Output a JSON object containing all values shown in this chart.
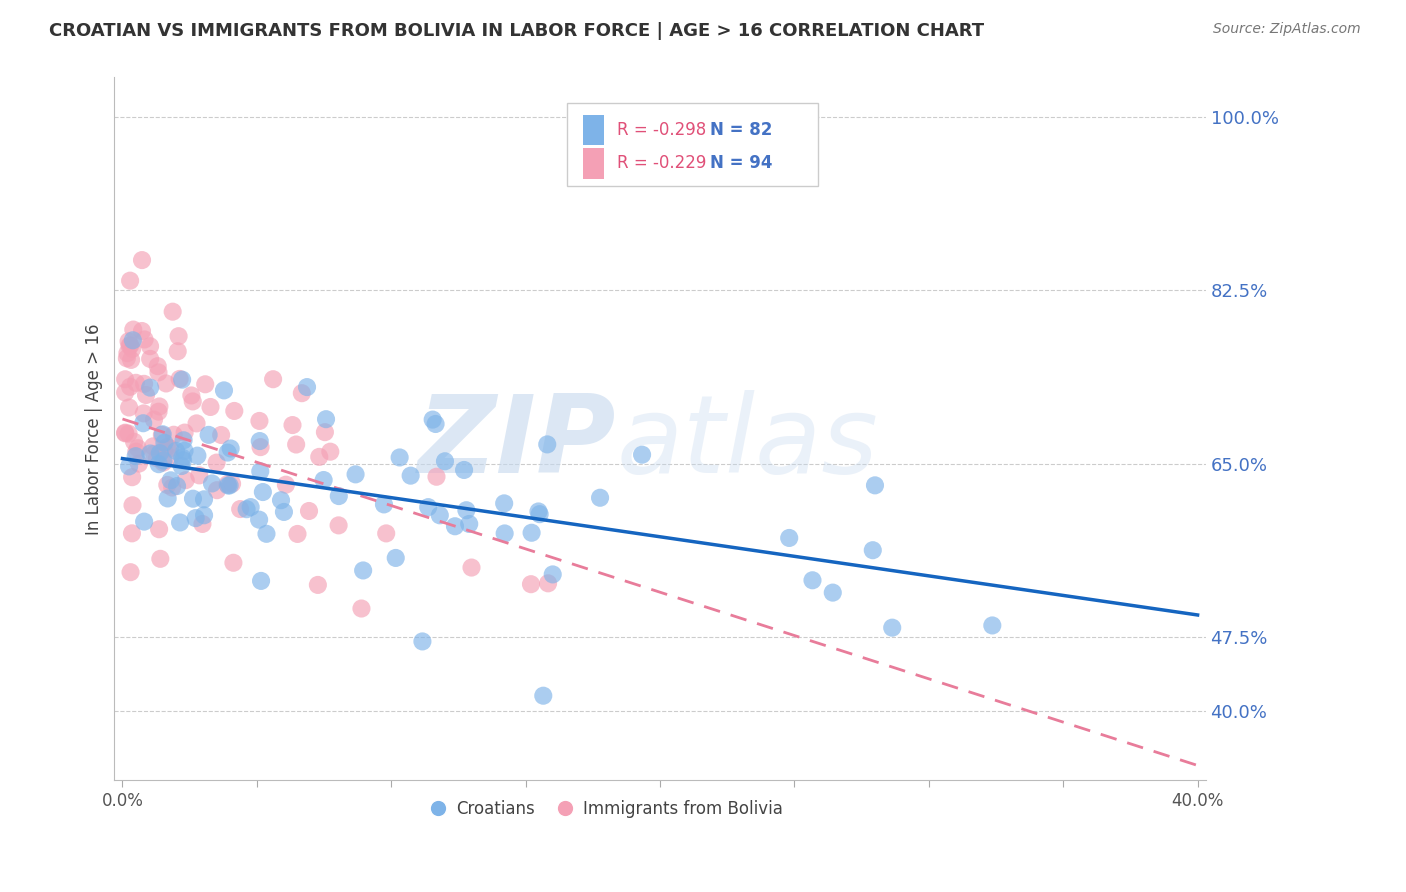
{
  "title": "CROATIAN VS IMMIGRANTS FROM BOLIVIA IN LABOR FORCE | AGE > 16 CORRELATION CHART",
  "source": "Source: ZipAtlas.com",
  "ylabel": "In Labor Force | Age > 16",
  "legend_croatians": "Croatians",
  "legend_bolivia": "Immigrants from Bolivia",
  "r_croatians": -0.298,
  "n_croatians": 82,
  "r_bolivia": -0.229,
  "n_bolivia": 94,
  "xlim": [
    -0.003,
    0.403
  ],
  "ylim": [
    0.33,
    1.04
  ],
  "yticks_right": [
    0.4,
    0.475,
    0.65,
    0.825,
    1.0
  ],
  "ytick_labels_right": [
    "40.0%",
    "47.5%",
    "65.0%",
    "82.5%",
    "100.0%"
  ],
  "xticks": [
    0.0,
    0.05,
    0.1,
    0.15,
    0.2,
    0.25,
    0.3,
    0.35,
    0.4
  ],
  "xtick_labels_bottom": [
    "0.0%",
    "",
    "",
    "",
    "",
    "",
    "",
    "",
    "40.0%"
  ],
  "color_croatians": "#7EB3E8",
  "color_bolivia": "#F4A0B5",
  "trendline_croatians": "#1565C0",
  "trendline_bolivia": "#E87C9A",
  "background_color": "#FFFFFF",
  "grid_color": "#CCCCCC",
  "axis_color": "#AAAAAA",
  "title_color": "#333333",
  "source_color": "#777777",
  "legend_r_color": "#E05078",
  "legend_n_color": "#4472C4",
  "watermark_zip_color": "#C5D8EE",
  "watermark_atlas_color": "#C5D8EE",
  "trendline_cr_x0": 0.0,
  "trendline_cr_x1": 0.4,
  "trendline_cr_y0": 0.655,
  "trendline_cr_y1": 0.497,
  "trendline_bo_x0": 0.0,
  "trendline_bo_x1": 0.4,
  "trendline_bo_y0": 0.695,
  "trendline_bo_y1": 0.345
}
